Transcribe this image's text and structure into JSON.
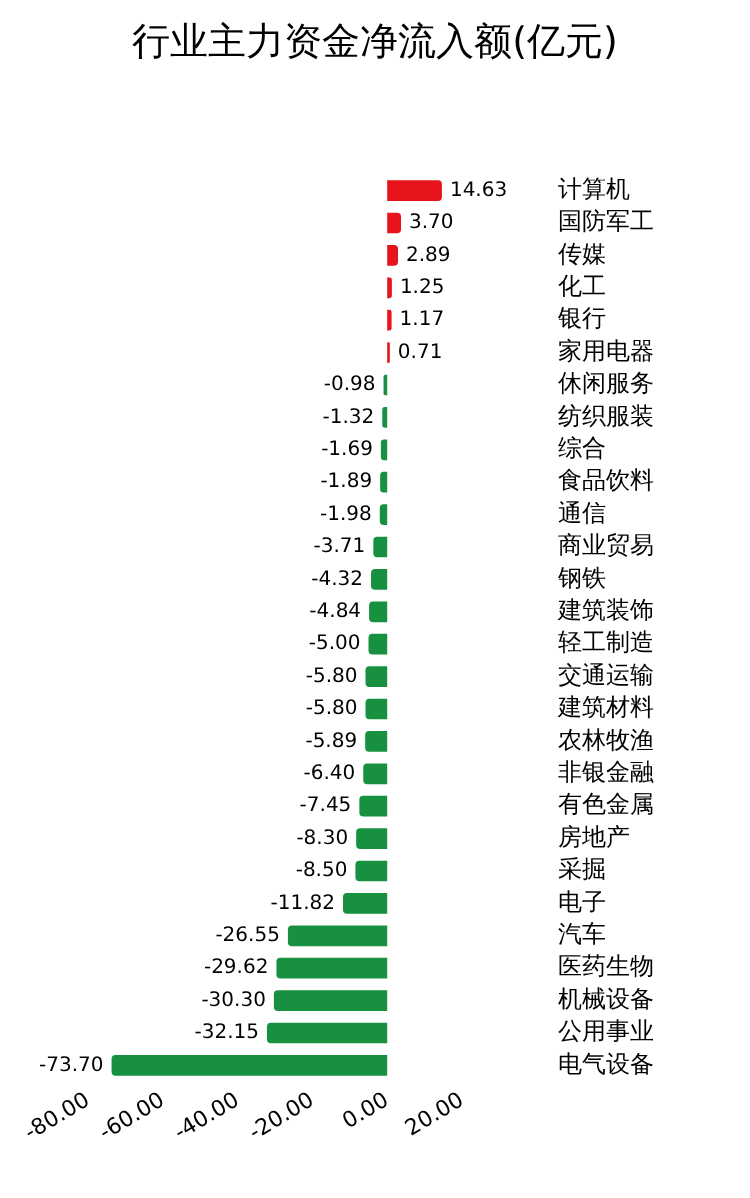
{
  "chart_data": {
    "type": "bar",
    "orientation": "horizontal",
    "title": "行业主力资金净流入额(亿元)",
    "categories": [
      "计算机",
      "国防军工",
      "传媒",
      "化工",
      "银行",
      "家用电器",
      "休闲服务",
      "纺织服装",
      "综合",
      "食品饮料",
      "通信",
      "商业贸易",
      "钢铁",
      "建筑装饰",
      "轻工制造",
      "交通运输",
      "建筑材料",
      "农林牧渔",
      "非银金融",
      "有色金属",
      "房地产",
      "采掘",
      "电子",
      "汽车",
      "医药生物",
      "机械设备",
      "公用事业",
      "电气设备"
    ],
    "values": [
      14.63,
      3.7,
      2.89,
      1.25,
      1.17,
      0.71,
      -0.98,
      -1.32,
      -1.69,
      -1.89,
      -1.98,
      -3.71,
      -4.32,
      -4.84,
      -5.0,
      -5.8,
      -5.8,
      -5.89,
      -6.4,
      -7.45,
      -8.3,
      -8.5,
      -11.82,
      -26.55,
      -29.62,
      -30.3,
      -32.15,
      -73.7
    ],
    "value_labels": [
      "14.63",
      "3.70",
      "2.89",
      "1.25",
      "1.17",
      "0.71",
      "-0.98",
      "-1.32",
      "-1.69",
      "-1.89",
      "-1.98",
      "-3.71",
      "-4.32",
      "-4.84",
      "-5.00",
      "-5.80",
      "-5.80",
      "-5.89",
      "-6.40",
      "-7.45",
      "-8.30",
      "-8.50",
      "-11.82",
      "-26.55",
      "-29.62",
      "-30.30",
      "-32.15",
      "-73.70"
    ],
    "colors": [
      "#e8141c",
      "#e8141c",
      "#e8141c",
      "#e8141c",
      "#e8141c",
      "#e8141c",
      "#17913f",
      "#17913f",
      "#17913f",
      "#17913f",
      "#17913f",
      "#17913f",
      "#17913f",
      "#17913f",
      "#17913f",
      "#17913f",
      "#17913f",
      "#17913f",
      "#17913f",
      "#17913f",
      "#17913f",
      "#17913f",
      "#17913f",
      "#17913f",
      "#17913f",
      "#17913f",
      "#17913f",
      "#17913f"
    ],
    "xlim": [
      -80,
      20
    ],
    "xticks": [
      {
        "value": -80,
        "label": "-80.00"
      },
      {
        "value": -60,
        "label": "-60.00"
      },
      {
        "value": -40,
        "label": "-40.00"
      },
      {
        "value": -20,
        "label": "-20.00"
      },
      {
        "value": 0,
        "label": "0.00"
      },
      {
        "value": 20,
        "label": "20.00"
      }
    ],
    "grid": false,
    "legend": false
  }
}
